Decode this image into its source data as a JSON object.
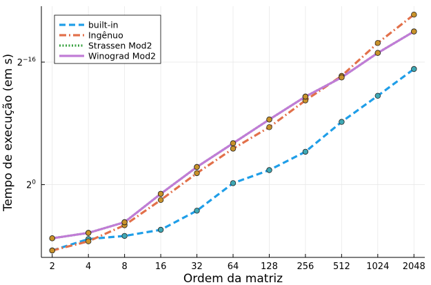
{
  "chart_data": {
    "type": "line",
    "xlabel": "Ordem da matriz",
    "ylabel": "Tempo de execução (em s)",
    "x_scale": "log2",
    "y_scale": "log2",
    "x": [
      2,
      4,
      8,
      16,
      32,
      64,
      128,
      256,
      512,
      1024,
      2048
    ],
    "xtick_labels": [
      "2",
      "4",
      "8",
      "16",
      "32",
      "64",
      "128",
      "256",
      "512",
      "1024",
      "2048"
    ],
    "ytick_values": [
      -16,
      0
    ],
    "ytick_labels": [
      "2",
      "0",
      "2",
      "−16"
    ],
    "ylim_log2": [
      -25.5,
      7.3
    ],
    "grid": true,
    "legend_position": "top-left",
    "series": [
      {
        "name": "built-in",
        "color": "#1f9ee8",
        "dash": "dashed",
        "log2_values": [
          -24.6,
          -23.1,
          -22.7,
          -21.9,
          -19.4,
          -15.8,
          -14.1,
          -11.7,
          -7.8,
          -4.4,
          -0.9
        ]
      },
      {
        "name": "Ingênuo",
        "color": "#e2704a",
        "dash": "dashdot",
        "log2_values": [
          -24.6,
          -23.4,
          -21.3,
          -18.0,
          -14.5,
          -11.3,
          -8.5,
          -5.0,
          -1.8,
          2.5,
          6.2
        ]
      },
      {
        "name": "Strassen Mod2",
        "color": "#3aa141",
        "dash": "dotted",
        "log2_values": [
          -23.0,
          -22.3,
          -20.9,
          -17.2,
          -13.7,
          -10.6,
          -7.5,
          -4.5,
          -2.0,
          1.2,
          4.0
        ]
      },
      {
        "name": "Winograd Mod2",
        "color": "#c07cd6",
        "dash": "solid",
        "log2_values": [
          -23.0,
          -22.3,
          -20.9,
          -17.2,
          -13.7,
          -10.6,
          -7.5,
          -4.5,
          -2.0,
          1.2,
          4.0
        ]
      }
    ],
    "marker_colors": [
      "#3fa8b4",
      "#c9922a"
    ]
  }
}
